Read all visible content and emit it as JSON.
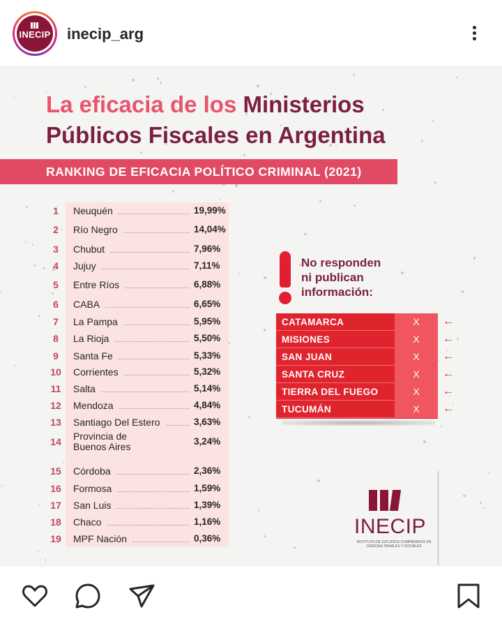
{
  "header": {
    "avatar_text": "INECIP",
    "username": "inecip_arg"
  },
  "post": {
    "title_part1": "La eficacia de los ",
    "title_part2": "Ministerios",
    "title_line2": "Públicos Fiscales en Argentina",
    "banner": "RANKING DE EFICACIA POLÍTICO CRIMINAL (2021)",
    "ranking": [
      {
        "rank": "1",
        "name": "Neuquén",
        "value": "19,99%"
      },
      {
        "rank": "2",
        "name": "Río Negro",
        "value": "14,04%"
      },
      {
        "rank": "3",
        "name": "Chubut",
        "value": "7,96%"
      },
      {
        "rank": "4",
        "name": "Jujuy",
        "value": "7,11%"
      },
      {
        "rank": "5",
        "name": "Entre Ríos",
        "value": "6,88%"
      },
      {
        "rank": "6",
        "name": "CABA",
        "value": "6,65%"
      },
      {
        "rank": "7",
        "name": "La Pampa",
        "value": "5,95%"
      },
      {
        "rank": "8",
        "name": "La Rioja",
        "value": "5,50%"
      },
      {
        "rank": "9",
        "name": "Santa Fe",
        "value": "5,33%"
      },
      {
        "rank": "10",
        "name": "Corrientes",
        "value": "5,32%"
      },
      {
        "rank": "11",
        "name": "Salta",
        "value": "5,14%"
      },
      {
        "rank": "12",
        "name": "Mendoza",
        "value": "4,84%"
      },
      {
        "rank": "13",
        "name": "Santiago Del Estero",
        "value": "3,63%"
      },
      {
        "rank": "14",
        "name": "Provincia de",
        "name2": "Buenos Aires",
        "value": "3,24%"
      },
      {
        "rank": "15",
        "name": "Córdoba",
        "value": "2,36%"
      },
      {
        "rank": "16",
        "name": "Formosa",
        "value": "1,59%"
      },
      {
        "rank": "17",
        "name": "San Luis",
        "value": "1,39%"
      },
      {
        "rank": "18",
        "name": "Chaco",
        "value": "1,16%"
      },
      {
        "rank": "19",
        "name": "MPF Nación",
        "value": "0,36%"
      }
    ],
    "no_response_line1": "No responden",
    "no_response_line2": "ni publican",
    "no_response_line3": "información:",
    "non_responding": [
      {
        "name": "CATAMARCA",
        "mark": "X",
        "arrow": "←"
      },
      {
        "name": "MISIONES",
        "mark": "X",
        "arrow": "←"
      },
      {
        "name": "SAN JUAN",
        "mark": "X",
        "arrow": "←"
      },
      {
        "name": "SANTA CRUZ",
        "mark": "X",
        "arrow": "←"
      },
      {
        "name": "TIERRA DEL FUEGO",
        "mark": "X",
        "arrow": "←"
      },
      {
        "name": "TUCUMÁN",
        "mark": "X",
        "arrow": "←"
      }
    ],
    "logo_name": "INECIP",
    "logo_subtitle": "INSTITUTO DE ESTUDIOS COMPARADOS EN CIENCIAS PENALES Y SOCIALES"
  },
  "actions": {
    "like_icon": "heart-icon",
    "comment_icon": "comment-icon",
    "share_icon": "send-icon",
    "save_icon": "bookmark-icon"
  },
  "colors": {
    "brand": "#7a1f3d",
    "accent_pink": "#e24a64",
    "alert_red": "#e0242e"
  }
}
